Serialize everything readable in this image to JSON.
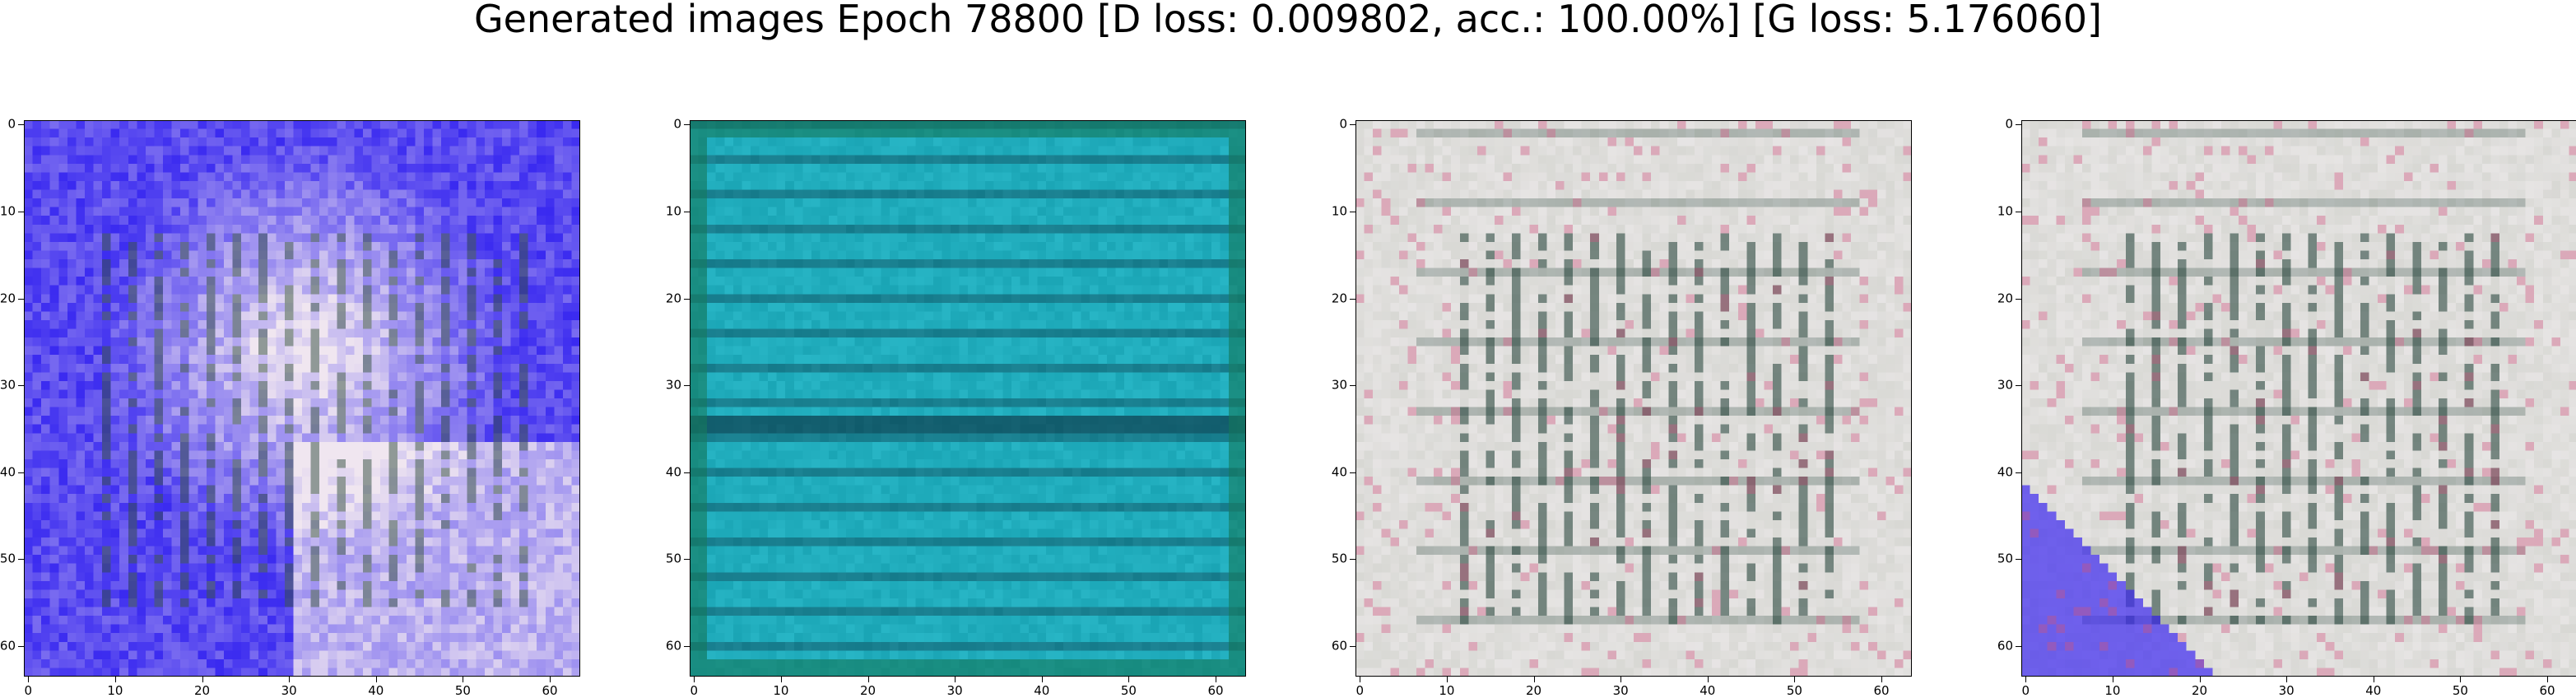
{
  "figure": {
    "title": "Generated images Epoch 78800 [D loss: 0.009802, acc.: 100.00%] [G loss: 5.176060]"
  },
  "axes": {
    "x_ticks": [
      "0",
      "10",
      "20",
      "30",
      "40",
      "50",
      "60"
    ],
    "y_ticks": [
      "0",
      "10",
      "20",
      "30",
      "40",
      "50",
      "60"
    ],
    "pixel_grid": 64
  },
  "images": [
    {
      "name": "generated-image-1",
      "palette": "blue-white",
      "base": "#3a2af0",
      "light": "#f0e6f0",
      "accent": "#1a3a2a"
    },
    {
      "name": "generated-image-2",
      "palette": "teal",
      "base": "#1aa5b5",
      "light": "#35c5d5",
      "accent": "#0a2a3a"
    },
    {
      "name": "generated-image-3",
      "palette": "pale-gray",
      "base": "#d8d8d4",
      "light": "#f2eef0",
      "accent": "#1a3a30"
    },
    {
      "name": "generated-image-4",
      "palette": "pale-gray-blue",
      "base": "#d8d8d4",
      "light": "#f2eef0",
      "accent": "#1a3a30"
    }
  ]
}
